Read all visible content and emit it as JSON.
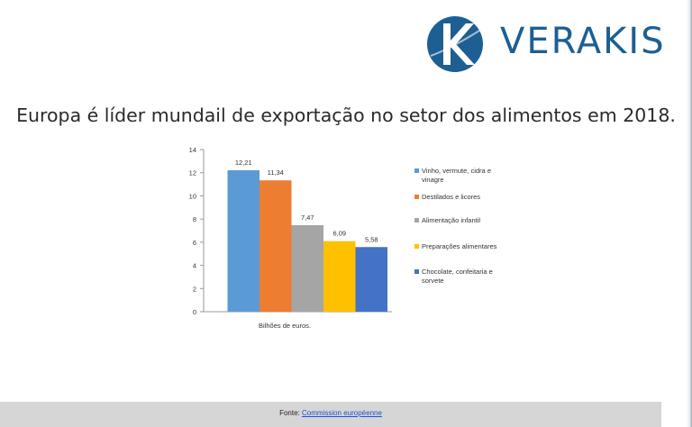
{
  "brand": {
    "name": "VERAKIS",
    "logo_icon": "verakis-k-logo-icon",
    "color": "#1d5f93"
  },
  "headline": "Europa é líder mundail de exportação no setor dos alimentos em 2018.",
  "chart_data": {
    "type": "bar",
    "categories": [
      "Bilhões de euros."
    ],
    "series": [
      {
        "name": "Vinho, vermute, cidra e vinagre",
        "values": [
          12.21
        ],
        "label": "12,21",
        "color": "#5b9bd5"
      },
      {
        "name": "Destilados e licores",
        "values": [
          11.34
        ],
        "label": "11,34",
        "color": "#ed7d31"
      },
      {
        "name": "Alimentação infantil",
        "values": [
          7.47
        ],
        "label": "7,47",
        "color": "#a5a5a5"
      },
      {
        "name": "Preparações alimentares",
        "values": [
          6.09
        ],
        "label": "6,09",
        "color": "#ffc000"
      },
      {
        "name": "Chocolate, confeitaria e sorvete",
        "values": [
          5.58
        ],
        "label": "5,58",
        "color": "#4472c4"
      }
    ],
    "ylim": [
      0,
      14
    ],
    "yticks": [
      0,
      2,
      4,
      6,
      8,
      10,
      12,
      14
    ],
    "grid": false,
    "legend_position": "right"
  },
  "footer": {
    "prefix": "Fonte: ",
    "link_text": "Commission européenne"
  }
}
